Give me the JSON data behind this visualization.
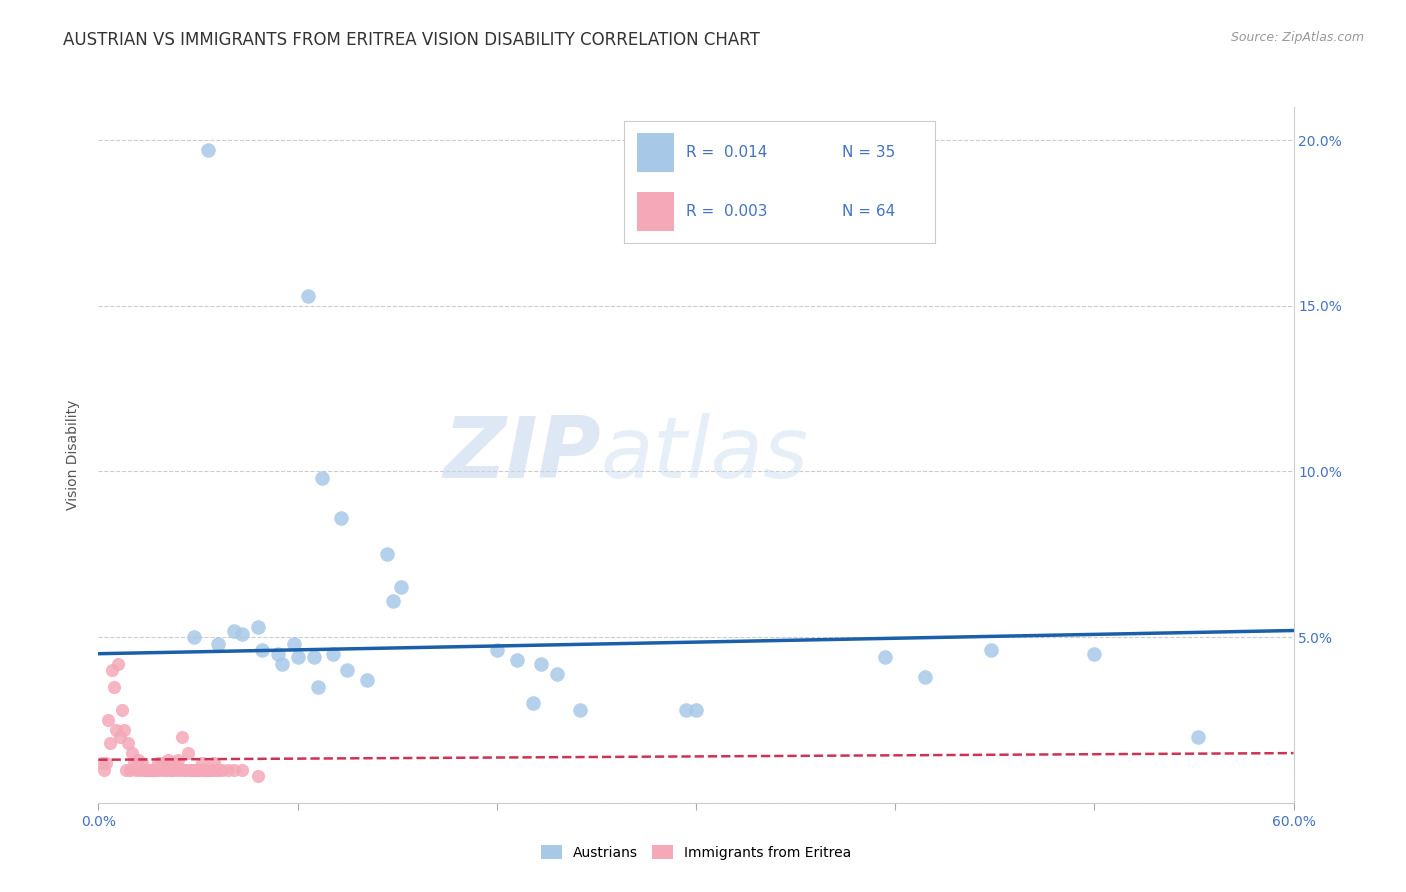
{
  "title": "AUSTRIAN VS IMMIGRANTS FROM ERITREA VISION DISABILITY CORRELATION CHART",
  "source": "Source: ZipAtlas.com",
  "ylabel": "Vision Disability",
  "xlim": [
    0.0,
    0.6
  ],
  "ylim": [
    0.0,
    0.21
  ],
  "yticks": [
    0.0,
    0.05,
    0.1,
    0.15,
    0.2
  ],
  "ytick_labels_right": [
    "",
    "5.0%",
    "10.0%",
    "15.0%",
    "20.0%"
  ],
  "xtick_positions": [
    0.0,
    0.1,
    0.2,
    0.3,
    0.4,
    0.5,
    0.6
  ],
  "xtick_labels": [
    "0.0%",
    "",
    "",
    "",
    "",
    "",
    "60.0%"
  ],
  "background_color": "#ffffff",
  "grid_color": "#cccccc",
  "legend_R1": "R =  0.014",
  "legend_N1": "N = 35",
  "legend_R2": "R =  0.003",
  "legend_N2": "N = 64",
  "legend_label1": "Austrians",
  "legend_label2": "Immigrants from Eritrea",
  "blue_color": "#a8c8e8",
  "blue_line_color": "#1a5fa8",
  "pink_color": "#f4a8b8",
  "pink_line_color": "#cc3355",
  "watermark_zip": "ZIP",
  "watermark_atlas": "atlas",
  "blue_scatter_x": [
    0.055,
    0.105,
    0.112,
    0.122,
    0.145,
    0.048,
    0.06,
    0.072,
    0.082,
    0.092,
    0.1,
    0.108,
    0.118,
    0.125,
    0.135,
    0.148,
    0.2,
    0.21,
    0.222,
    0.23,
    0.242,
    0.3,
    0.395,
    0.415,
    0.5,
    0.552,
    0.068,
    0.08,
    0.09,
    0.098,
    0.11,
    0.152,
    0.218,
    0.295,
    0.448
  ],
  "blue_scatter_y": [
    0.197,
    0.153,
    0.098,
    0.086,
    0.075,
    0.05,
    0.048,
    0.051,
    0.046,
    0.042,
    0.044,
    0.044,
    0.045,
    0.04,
    0.037,
    0.061,
    0.046,
    0.043,
    0.042,
    0.039,
    0.028,
    0.028,
    0.044,
    0.038,
    0.045,
    0.02,
    0.052,
    0.053,
    0.045,
    0.048,
    0.035,
    0.065,
    0.03,
    0.028,
    0.046
  ],
  "pink_scatter_x": [
    0.002,
    0.003,
    0.004,
    0.005,
    0.006,
    0.007,
    0.008,
    0.009,
    0.01,
    0.011,
    0.012,
    0.013,
    0.014,
    0.015,
    0.016,
    0.017,
    0.018,
    0.019,
    0.02,
    0.021,
    0.022,
    0.023,
    0.024,
    0.025,
    0.026,
    0.027,
    0.028,
    0.029,
    0.03,
    0.031,
    0.032,
    0.033,
    0.034,
    0.035,
    0.036,
    0.037,
    0.038,
    0.039,
    0.04,
    0.041,
    0.042,
    0.043,
    0.044,
    0.045,
    0.046,
    0.047,
    0.048,
    0.049,
    0.05,
    0.051,
    0.052,
    0.053,
    0.054,
    0.055,
    0.056,
    0.057,
    0.058,
    0.059,
    0.06,
    0.062,
    0.065,
    0.068,
    0.072,
    0.08
  ],
  "pink_scatter_y": [
    0.012,
    0.01,
    0.012,
    0.025,
    0.018,
    0.04,
    0.035,
    0.022,
    0.042,
    0.02,
    0.028,
    0.022,
    0.01,
    0.018,
    0.01,
    0.015,
    0.012,
    0.01,
    0.013,
    0.01,
    0.012,
    0.01,
    0.01,
    0.01,
    0.01,
    0.01,
    0.01,
    0.01,
    0.012,
    0.01,
    0.012,
    0.01,
    0.01,
    0.013,
    0.01,
    0.01,
    0.012,
    0.01,
    0.013,
    0.01,
    0.02,
    0.01,
    0.01,
    0.015,
    0.01,
    0.01,
    0.01,
    0.01,
    0.01,
    0.01,
    0.012,
    0.01,
    0.01,
    0.01,
    0.01,
    0.01,
    0.012,
    0.01,
    0.01,
    0.01,
    0.01,
    0.01,
    0.01,
    0.008
  ],
  "blue_trend_x": [
    0.0,
    0.6
  ],
  "blue_trend_y": [
    0.045,
    0.052
  ],
  "pink_trend_x": [
    0.0,
    0.6
  ],
  "pink_trend_y": [
    0.013,
    0.015
  ],
  "title_fontsize": 12,
  "source_fontsize": 9,
  "axis_label_fontsize": 10,
  "tick_fontsize": 10,
  "scatter_size_blue": 110,
  "scatter_size_pink": 90
}
